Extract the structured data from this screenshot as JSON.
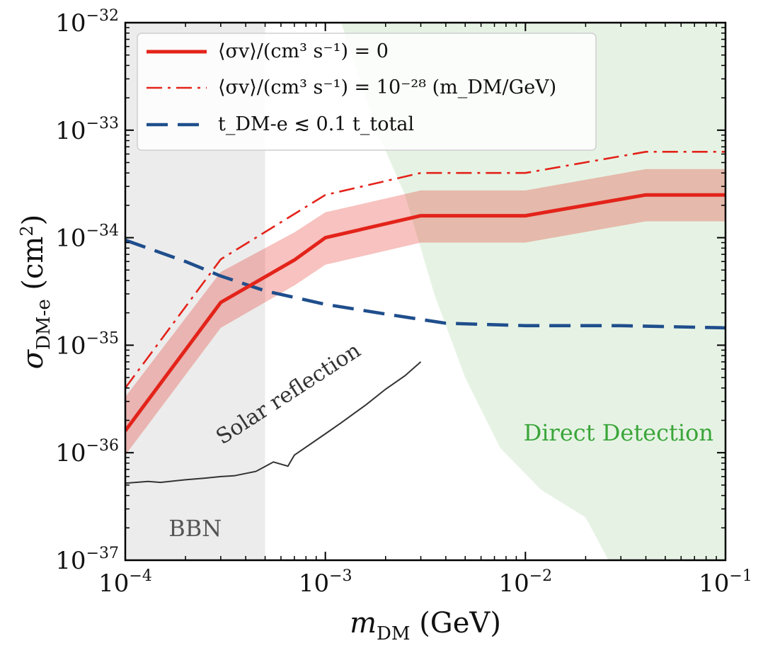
{
  "chart_data": {
    "type": "line",
    "x_scale": "log",
    "y_scale": "log",
    "xlim": [
      0.0001,
      0.1
    ],
    "ylim": [
      1e-37,
      1e-32
    ],
    "xlabel": "m_DM (GeV)",
    "ylabel": "σ_DM-e (cm²)",
    "x_ticks": [
      {
        "value": 0.0001,
        "base": "10",
        "exp": "−4"
      },
      {
        "value": 0.001,
        "base": "10",
        "exp": "−3"
      },
      {
        "value": 0.01,
        "base": "10",
        "exp": "−2"
      },
      {
        "value": 0.1,
        "base": "10",
        "exp": "−1"
      }
    ],
    "y_ticks": [
      {
        "value": 1e-37,
        "base": "10",
        "exp": "−37"
      },
      {
        "value": 1e-36,
        "base": "10",
        "exp": "−36"
      },
      {
        "value": 1e-35,
        "base": "10",
        "exp": "−35"
      },
      {
        "value": 1e-34,
        "base": "10",
        "exp": "−34"
      },
      {
        "value": 1e-33,
        "base": "10",
        "exp": "−33"
      },
      {
        "value": 1e-32,
        "base": "10",
        "exp": "−32"
      }
    ],
    "series": [
      {
        "name": "⟨σv⟩/(cm³ s⁻¹) = 0",
        "color": "#e3231a",
        "style": "solid",
        "x": [
          0.0001,
          0.0003,
          0.0007,
          0.001,
          0.003,
          0.01,
          0.04,
          0.1
        ],
        "y": [
          1.6e-36,
          2.5e-35,
          6.2e-35,
          1e-34,
          1.6e-34,
          1.6e-34,
          2.5e-34,
          2.5e-34
        ],
        "band_lower": [
          9.5e-37,
          1.45e-35,
          3.6e-35,
          5.6e-35,
          9e-35,
          9e-35,
          1.42e-34,
          1.42e-34
        ],
        "band_upper": [
          3.3e-36,
          4.8e-35,
          1.12e-34,
          1.72e-34,
          2.75e-34,
          2.75e-34,
          4.35e-34,
          4.35e-34
        ]
      },
      {
        "name": "⟨σv⟩/(cm³ s⁻¹) = 10⁻²⁸ (m_DM/GeV)",
        "color": "#e3231a",
        "style": "dashdot",
        "x": [
          0.0001,
          0.0003,
          0.001,
          0.003,
          0.01,
          0.04,
          0.1
        ],
        "y": [
          4e-36,
          6.3e-35,
          2.5e-34,
          4e-34,
          4e-34,
          6.3e-34,
          6.3e-34
        ]
      },
      {
        "name": "t_DM-e ≲ 0.1 t_total",
        "color": "#1f4e8c",
        "style": "dashed",
        "x": [
          0.0001,
          0.0002,
          0.0003,
          0.0005,
          0.001,
          0.002,
          0.004,
          0.01,
          0.03,
          0.1
        ],
        "y": [
          9.5e-35,
          6e-35,
          4.4e-35,
          3.2e-35,
          2.4e-35,
          1.95e-35,
          1.6e-35,
          1.52e-35,
          1.52e-35,
          1.45e-35
        ]
      }
    ],
    "solar_reflection": {
      "label": "Solar reflection",
      "color": "#333333",
      "x": [
        0.0001,
        0.00013,
        0.00015,
        0.0002,
        0.00025,
        0.0003,
        0.00035,
        0.00045,
        0.00055,
        0.00065,
        0.0007,
        0.001,
        0.0012,
        0.0016,
        0.002,
        0.0025,
        0.003
      ],
      "y": [
        5.2e-37,
        5.4e-37,
        5.3e-37,
        5.6e-37,
        5.8e-37,
        6e-37,
        6.1e-37,
        6.7e-37,
        8.2e-37,
        7.5e-37,
        9.5e-37,
        1.5e-36,
        1.9e-36,
        2.8e-36,
        3.9e-36,
        5.2e-36,
        7e-36
      ]
    },
    "regions": [
      {
        "label": "BBN",
        "x_range": [
          0.0001,
          0.0005
        ],
        "color": "#ececec"
      },
      {
        "label": "Direct Detection",
        "color": "#e6f3e4",
        "label_color": "#3aa53a",
        "boundary_x": [
          0.0012,
          0.0018,
          0.0025,
          0.0035,
          0.005,
          0.0075,
          0.012,
          0.02,
          0.026,
          0.1
        ],
        "boundary_y": [
          1e-32,
          1e-33,
          2.5e-34,
          3e-35,
          5e-36,
          1.1e-36,
          4.5e-37,
          2.5e-37,
          1e-37,
          1e-37
        ]
      }
    ],
    "legend_placement": "top-left"
  }
}
